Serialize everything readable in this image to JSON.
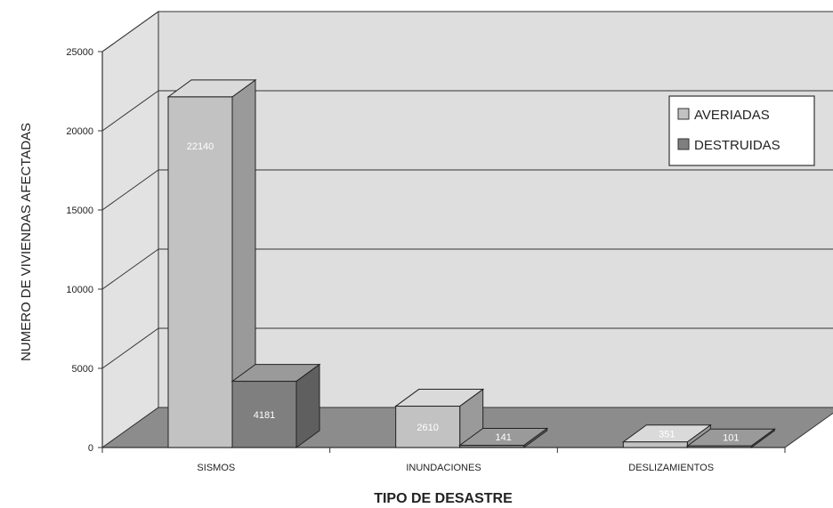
{
  "chart_data": {
    "type": "bar",
    "title": "",
    "xlabel": "TIPO DE DESASTRE",
    "ylabel": "NUMERO DE VIVIENDAS AFECTADAS",
    "ylim": [
      0,
      25000
    ],
    "yticks": [
      "0",
      "5000",
      "10000",
      "15000",
      "20000",
      "25000"
    ],
    "categories": [
      "SISMOS",
      "INUNDACIONES",
      "DESLIZAMIENTOS"
    ],
    "series": [
      {
        "name": "AVERIADAS",
        "values": [
          22140,
          2610,
          351
        ],
        "labels": [
          "22140",
          "2610",
          "351"
        ]
      },
      {
        "name": "DESTRUIDAS",
        "values": [
          4181,
          141,
          101
        ],
        "labels": [
          "4181",
          "141",
          "101"
        ]
      }
    ],
    "grid": true,
    "legend_position": "top-right",
    "colors": {
      "AVERIADAS": "#c2c2c2",
      "DESTRUIDAS": "#7f7f7f",
      "floor": "#8c8c8c",
      "wall": "#dedede"
    }
  }
}
